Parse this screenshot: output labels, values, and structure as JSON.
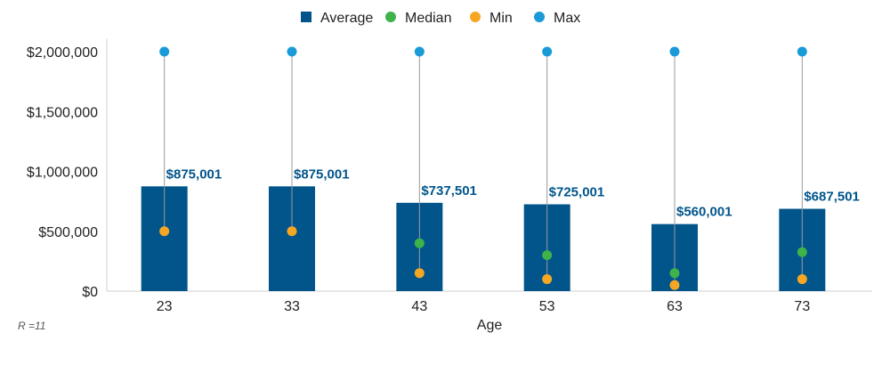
{
  "chart_data": {
    "type": "bar",
    "categories": [
      "23",
      "33",
      "43",
      "53",
      "63",
      "73"
    ],
    "series": [
      {
        "name": "Average",
        "kind": "bar",
        "values": [
          875001,
          875001,
          737501,
          725001,
          560001,
          687501
        ]
      },
      {
        "name": "Median",
        "kind": "point",
        "values": [
          500000,
          500000,
          400000,
          300000,
          150000,
          325000
        ]
      },
      {
        "name": "Min",
        "kind": "point",
        "values": [
          500000,
          500000,
          150000,
          100000,
          50000,
          100000
        ]
      },
      {
        "name": "Max",
        "kind": "point",
        "values": [
          2000000,
          2000000,
          2000000,
          2000000,
          2000000,
          2000000
        ]
      }
    ],
    "data_labels": [
      "$875,001",
      "$875,001",
      "$737,501",
      "$725,001",
      "$560,001",
      "$687,501"
    ],
    "xlabel": "Age",
    "ylabel": "",
    "ylim": [
      0,
      2000000
    ],
    "yticks": [
      0,
      500000,
      1000000,
      1500000,
      2000000
    ],
    "ytick_labels": [
      "$0",
      "$500,000",
      "$1,000,000",
      "$1,500,000",
      "$2,000,000"
    ],
    "legend_position": "top-center",
    "grid": false,
    "footnote": "R =11",
    "colors": {
      "Average": "#01558b",
      "Median": "#3db34a",
      "Min": "#f5a623",
      "Max": "#1a9bd7",
      "data_label": "#01558b",
      "range_line": "#9a9a9a"
    }
  }
}
